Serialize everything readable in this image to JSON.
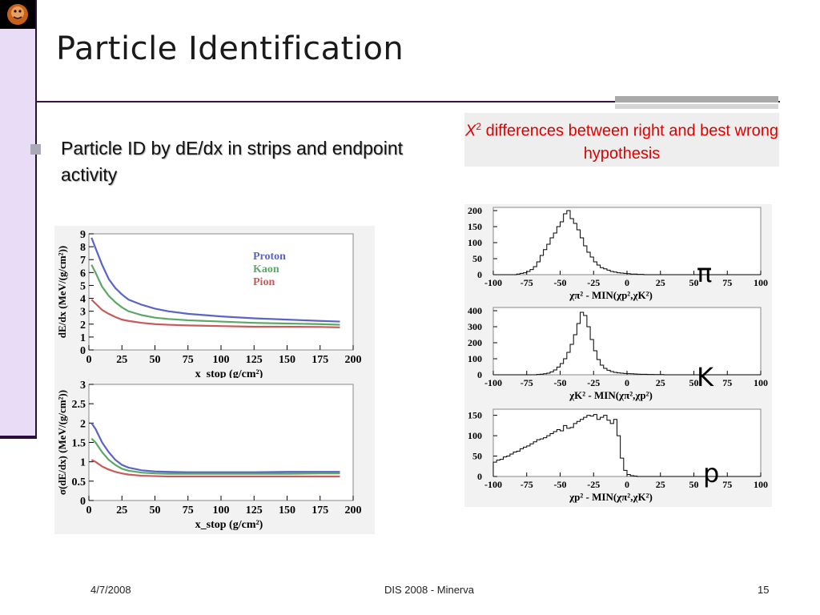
{
  "slide": {
    "title": "Particle Identification",
    "bullet": "Particle ID by dE/dx in strips and endpoint activity",
    "note_prefix": "X",
    "note_sup": "2",
    "note_rest": " differences between right and best wrong hypothesis",
    "footer_date": "4/7/2008",
    "footer_center": "DIS 2008 - Minerva",
    "footer_page": "15",
    "particle_labels": [
      "π",
      "K",
      "p"
    ],
    "colors": {
      "proton": "#5a64c8",
      "kaon": "#5aa868",
      "pion": "#c85a5a",
      "note": "#e00000",
      "accent_bar": "#e8dcf7"
    }
  },
  "chart_data": [
    {
      "type": "line",
      "xlabel": "x_stop (g/cm²)",
      "ylabel": "dE/dx (MeV/(g/cm²))",
      "xlim": [
        0,
        200
      ],
      "ylim": [
        0,
        9
      ],
      "xticks": [
        "0",
        "25",
        "50",
        "75",
        "100",
        "125",
        "150",
        "175",
        "200"
      ],
      "yticks": [
        "0",
        "1",
        "2",
        "3",
        "4",
        "5",
        "6",
        "7",
        "8",
        "9"
      ],
      "legend": "top-right",
      "x": [
        2,
        5,
        10,
        15,
        20,
        25,
        30,
        40,
        50,
        60,
        75,
        100,
        125,
        150,
        175,
        190
      ],
      "series": [
        {
          "name": "Proton",
          "values": [
            8.7,
            7.9,
            6.6,
            5.5,
            4.8,
            4.3,
            3.9,
            3.5,
            3.2,
            3.0,
            2.8,
            2.6,
            2.45,
            2.35,
            2.25,
            2.2
          ]
        },
        {
          "name": "Kaon",
          "values": [
            6.6,
            6.0,
            4.9,
            4.2,
            3.7,
            3.3,
            3.0,
            2.7,
            2.5,
            2.4,
            2.3,
            2.2,
            2.1,
            2.05,
            2.0,
            1.95
          ]
        },
        {
          "name": "Pion",
          "values": [
            3.9,
            3.6,
            3.1,
            2.8,
            2.55,
            2.35,
            2.25,
            2.1,
            2.0,
            1.95,
            1.9,
            1.85,
            1.8,
            1.8,
            1.78,
            1.75
          ]
        }
      ]
    },
    {
      "type": "line",
      "xlabel": "x_stop (g/cm²)",
      "ylabel": "σ(dE/dx) (MeV/(g/cm²))",
      "xlim": [
        0,
        200
      ],
      "ylim": [
        0,
        3
      ],
      "xticks": [
        "0",
        "25",
        "50",
        "75",
        "100",
        "125",
        "150",
        "175",
        "200"
      ],
      "yticks": [
        "0",
        "0.5",
        "1",
        "1.5",
        "2",
        "2.5",
        "3"
      ],
      "x": [
        2,
        5,
        10,
        15,
        20,
        25,
        30,
        40,
        50,
        60,
        75,
        100,
        125,
        150,
        175,
        190
      ],
      "series": [
        {
          "name": "Proton",
          "values": [
            2.0,
            1.85,
            1.5,
            1.25,
            1.05,
            0.92,
            0.85,
            0.78,
            0.75,
            0.74,
            0.73,
            0.73,
            0.73,
            0.74,
            0.74,
            0.74
          ]
        },
        {
          "name": "Kaon",
          "values": [
            1.6,
            1.5,
            1.25,
            1.05,
            0.92,
            0.82,
            0.77,
            0.72,
            0.7,
            0.69,
            0.69,
            0.69,
            0.69,
            0.69,
            0.7,
            0.7
          ]
        },
        {
          "name": "Pion",
          "values": [
            1.05,
            1.0,
            0.88,
            0.8,
            0.74,
            0.7,
            0.67,
            0.64,
            0.63,
            0.62,
            0.62,
            0.62,
            0.62,
            0.62,
            0.62,
            0.62
          ]
        }
      ]
    },
    {
      "type": "bar",
      "xlabel": "χπ² - MIN(χp²,χK²)",
      "xlim": [
        -100,
        100
      ],
      "ylim": [
        0,
        210
      ],
      "xticks": [
        "-100",
        "-75",
        "-50",
        "-25",
        "0",
        "25",
        "50",
        "75",
        "100"
      ],
      "yticks": [
        "0",
        "50",
        "100",
        "150",
        "200"
      ],
      "bin_start": -100,
      "bin_width": 2.5,
      "values": [
        0,
        0,
        0,
        0,
        0,
        0,
        0,
        2,
        4,
        6,
        10,
        16,
        25,
        40,
        60,
        78,
        95,
        115,
        130,
        150,
        165,
        190,
        200,
        175,
        160,
        140,
        115,
        90,
        70,
        55,
        40,
        30,
        22,
        18,
        14,
        10,
        8,
        6,
        5,
        4,
        3,
        2,
        2,
        1,
        1,
        0,
        0,
        0,
        0,
        0,
        0,
        0,
        0,
        0,
        0,
        0,
        0,
        0,
        0,
        0,
        0,
        0,
        0,
        0,
        0,
        0,
        0,
        0,
        0,
        0,
        0,
        0,
        0,
        0,
        0,
        0,
        0,
        0,
        0,
        0
      ]
    },
    {
      "type": "bar",
      "xlabel": "χK² - MIN(χπ²,χp²)",
      "xlim": [
        -100,
        100
      ],
      "ylim": [
        0,
        420
      ],
      "xticks": [
        "-100",
        "-75",
        "-50",
        "-25",
        "0",
        "25",
        "50",
        "75",
        "100"
      ],
      "yticks": [
        "0",
        "100",
        "200",
        "300",
        "400"
      ],
      "bin_start": -100,
      "bin_width": 2.5,
      "values": [
        0,
        0,
        0,
        0,
        0,
        0,
        0,
        0,
        0,
        0,
        0,
        0,
        0,
        2,
        4,
        6,
        10,
        18,
        30,
        48,
        70,
        100,
        140,
        190,
        250,
        320,
        390,
        370,
        300,
        220,
        150,
        95,
        60,
        40,
        28,
        20,
        15,
        12,
        10,
        8,
        7,
        6,
        5,
        4,
        3,
        3,
        2,
        2,
        1,
        1,
        1,
        0,
        0,
        0,
        0,
        0,
        0,
        0,
        0,
        0,
        0,
        0,
        0,
        0,
        0,
        0,
        0,
        0,
        0,
        0,
        0,
        0,
        0,
        0,
        0,
        0,
        0,
        0,
        0,
        0
      ]
    },
    {
      "type": "bar",
      "xlabel": "χp² - MIN(χπ²,χK²)",
      "xlim": [
        -100,
        100
      ],
      "ylim": [
        0,
        165
      ],
      "xticks": [
        "-100",
        "-75",
        "-50",
        "-25",
        "0",
        "25",
        "50",
        "75",
        "100"
      ],
      "yticks": [
        "0",
        "50",
        "100",
        "150"
      ],
      "bin_start": -100,
      "bin_width": 2.5,
      "values": [
        35,
        40,
        42,
        48,
        50,
        55,
        60,
        62,
        68,
        72,
        75,
        80,
        85,
        90,
        92,
        95,
        100,
        105,
        110,
        115,
        112,
        125,
        118,
        120,
        130,
        135,
        140,
        145,
        150,
        148,
        152,
        140,
        145,
        150,
        138,
        130,
        140,
        100,
        45,
        15,
        5,
        2,
        1,
        0,
        0,
        0,
        0,
        0,
        0,
        0,
        0,
        0,
        0,
        0,
        0,
        0,
        0,
        0,
        0,
        0,
        0,
        0,
        0,
        0,
        0,
        0,
        0,
        0,
        0,
        0,
        0,
        0,
        0,
        0,
        0,
        0,
        0,
        0,
        0,
        0
      ]
    }
  ]
}
